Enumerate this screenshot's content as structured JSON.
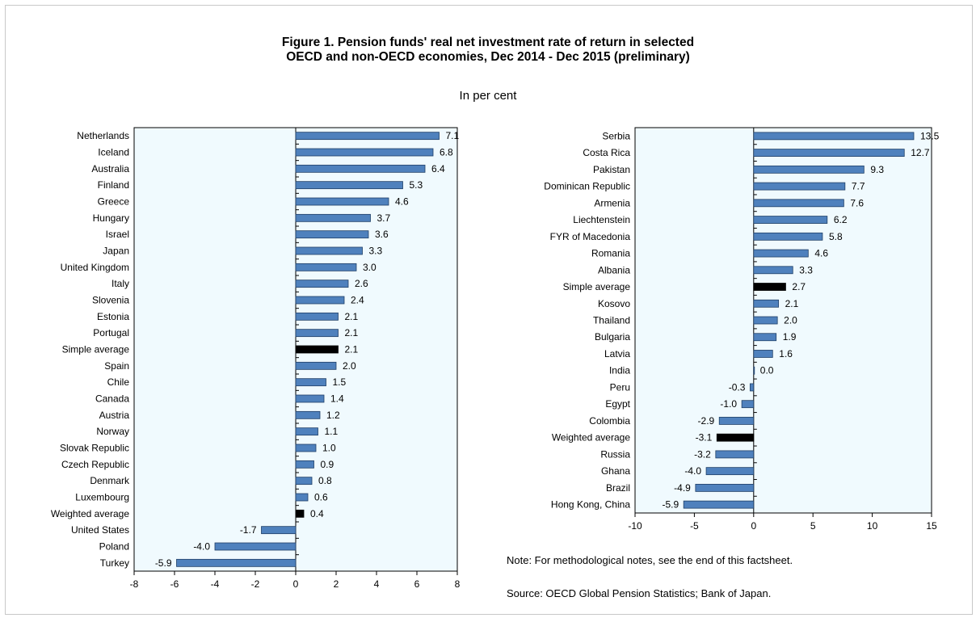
{
  "title_line1": "Figure 1. Pension funds' real net investment rate of return in selected",
  "title_line2": "OECD and non-OECD economies, Dec 2014 - Dec 2015 (preliminary)",
  "subtitle": "In per cent",
  "note": "Note: For methodological notes, see the end of this factsheet.",
  "source": "Source: OECD Global Pension Statistics; Bank of Japan.",
  "colors": {
    "bar": "#4f81bd",
    "highlight": "#000000",
    "plot_bg": "#f0fafe",
    "label_bar_color": "#4f81bd"
  },
  "chart_data": [
    {
      "type": "bar",
      "orientation": "horizontal",
      "categories": [
        "Netherlands",
        "Iceland",
        "Australia",
        "Finland",
        "Greece",
        "Hungary",
        "Israel",
        "Japan",
        "United Kingdom",
        "Italy",
        "Slovenia",
        "Estonia",
        "Portugal",
        "Simple average",
        "Spain",
        "Chile",
        "Canada",
        "Austria",
        "Norway",
        "Slovak Republic",
        "Czech Republic",
        "Denmark",
        "Luxembourg",
        "Weighted average",
        "United States",
        "Poland",
        "Turkey"
      ],
      "values": [
        7.1,
        6.8,
        6.4,
        5.3,
        4.6,
        3.7,
        3.6,
        3.3,
        3.0,
        2.6,
        2.4,
        2.1,
        2.1,
        2.1,
        2.0,
        1.5,
        1.4,
        1.2,
        1.1,
        1.0,
        0.9,
        0.8,
        0.6,
        0.4,
        -1.7,
        -4.0,
        -5.9
      ],
      "labels": [
        "7.1",
        "6.8",
        "6.4",
        "5.3",
        "4.6",
        "3.7",
        "3.6",
        "3.3",
        "3.0",
        "2.6",
        "2.4",
        "2.1",
        "2.1",
        "2.1",
        "2.0",
        "1.5",
        "1.4",
        "1.2",
        "1.1",
        "1.0",
        "0.9",
        "0.8",
        "0.6",
        "0.4",
        "-1.7",
        "-4.0",
        "-5.9"
      ],
      "highlighted": [
        "Simple average",
        "Weighted average"
      ],
      "xlim": [
        -8,
        8
      ],
      "xticks": [
        -8,
        -6,
        -4,
        -2,
        0,
        2,
        4,
        6,
        8
      ],
      "xtick_labels": [
        "-8",
        "-6",
        "-4",
        "-2",
        "0",
        "2",
        "4",
        "6",
        "8"
      ]
    },
    {
      "type": "bar",
      "orientation": "horizontal",
      "categories": [
        "Serbia",
        "Costa Rica",
        "Pakistan",
        "Dominican Republic",
        "Armenia",
        "Liechtenstein",
        "FYR of Macedonia",
        "Romania",
        "Albania",
        "Simple average",
        "Kosovo",
        "Thailand",
        "Bulgaria",
        "Latvia",
        "India",
        "Peru",
        "Egypt",
        "Colombia",
        "Weighted average",
        "Russia",
        "Ghana",
        "Brazil",
        "Hong Kong, China"
      ],
      "values": [
        13.5,
        12.7,
        9.3,
        7.7,
        7.6,
        6.2,
        5.8,
        4.6,
        3.3,
        2.7,
        2.1,
        2.0,
        1.9,
        1.6,
        0.0,
        -0.3,
        -1.0,
        -2.9,
        -3.1,
        -3.2,
        -4.0,
        -4.9,
        -5.9
      ],
      "labels": [
        "13.5",
        "12.7",
        "9.3",
        "7.7",
        "7.6",
        "6.2",
        "5.8",
        "4.6",
        "3.3",
        "2.7",
        "2.1",
        "2.0",
        "1.9",
        "1.6",
        "0.0",
        "-0.3",
        "-1.0",
        "-2.9",
        "-3.1",
        "-3.2",
        "-4.0",
        "-4.9",
        "-5.9"
      ],
      "highlighted": [
        "Simple average",
        "Weighted average"
      ],
      "xlim": [
        -10,
        15
      ],
      "xticks": [
        -10,
        -5,
        0,
        5,
        10,
        15
      ],
      "xtick_labels": [
        "-10",
        "-5",
        "0",
        "5",
        "10",
        "15"
      ]
    }
  ]
}
